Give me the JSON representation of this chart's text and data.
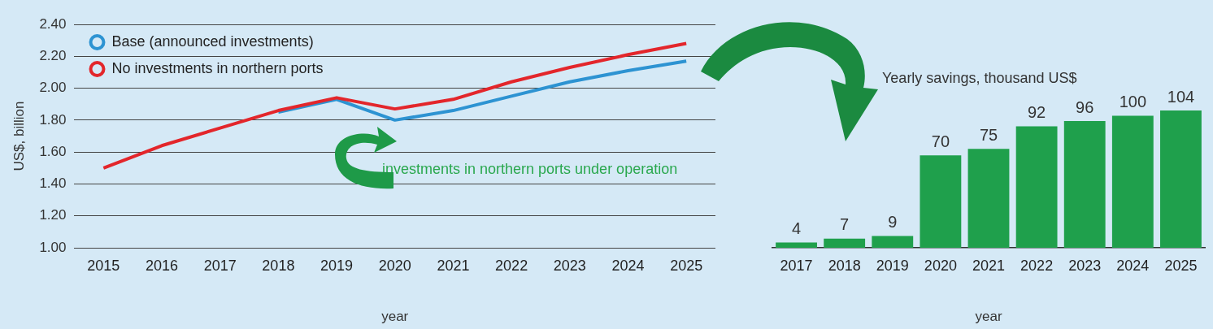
{
  "chart_data": [
    {
      "type": "line",
      "xlabel": "year",
      "ylabel": "US$, billion",
      "categories": [
        "2015",
        "2016",
        "2017",
        "2018",
        "2019",
        "2020",
        "2021",
        "2022",
        "2023",
        "2024",
        "2025"
      ],
      "series": [
        {
          "name": "Base (announced investments)",
          "color": "#2d93d2",
          "values": [
            null,
            null,
            null,
            1.85,
            1.93,
            1.8,
            1.86,
            1.95,
            2.04,
            2.11,
            2.17
          ]
        },
        {
          "name": "No investments in northern ports",
          "color": "#e3262b",
          "values": [
            1.5,
            1.64,
            1.75,
            1.86,
            1.94,
            1.87,
            1.93,
            2.04,
            2.13,
            2.21,
            2.28
          ]
        }
      ],
      "ylim": [
        1.0,
        2.4
      ],
      "yticks": [
        {
          "value": 1.0,
          "label": "1.00"
        },
        {
          "value": 1.2,
          "label": "1.20"
        },
        {
          "value": 1.4,
          "label": "1.40"
        },
        {
          "value": 1.6,
          "label": "1.60"
        },
        {
          "value": 1.8,
          "label": "1.80"
        },
        {
          "value": 2.0,
          "label": "2.00"
        },
        {
          "value": 2.2,
          "label": "2.20"
        },
        {
          "value": 2.4,
          "label": "2.40"
        }
      ],
      "grid": "y",
      "legend": "top left",
      "marker": "none",
      "annotations": [
        "investments in northern ports under operation"
      ]
    },
    {
      "type": "bar",
      "title": "Yearly savings, thousand US$",
      "xlabel": "year",
      "categories": [
        "2017",
        "2018",
        "2019",
        "2020",
        "2021",
        "2022",
        "2023",
        "2024",
        "2025"
      ],
      "values": [
        4,
        7,
        9,
        70,
        75,
        92,
        96,
        100,
        104
      ],
      "color": "#1fa04c",
      "data_labels": true,
      "relative": false
    }
  ]
}
